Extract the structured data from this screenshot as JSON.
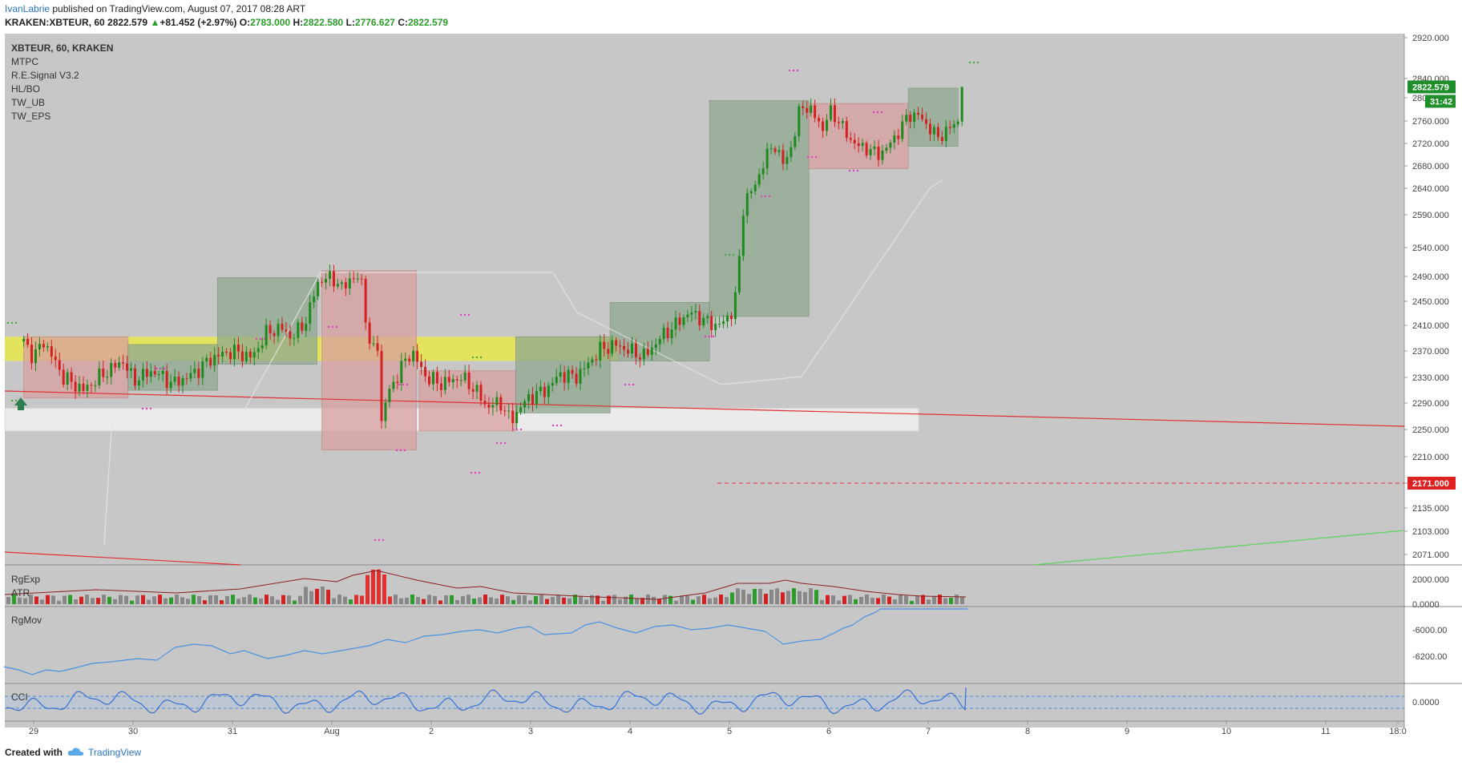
{
  "header": {
    "user": "IvanLabrie",
    "published": " published on TradingView.com, August 07, 2017 08:28 ART",
    "symbol": "KRAKEN:XBTEUR, 60",
    "last": "2822.579",
    "change": "+81.452 (+2.97%)",
    "o_label": "O:",
    "o": "2783.000",
    "h_label": "H:",
    "h": "2822.580",
    "l_label": "L:",
    "l": "2776.627",
    "c_label": "C:",
    "c": "2822.579"
  },
  "legend": {
    "symbol": "XBTEUR, 60, KRAKEN",
    "studies": [
      "MTPC",
      "R.E.Signal V3.2",
      "HL/BO",
      "TW_UB",
      "TW_EPS"
    ]
  },
  "price_badge": {
    "price": "2822.579",
    "countdown": "31:42"
  },
  "level_badge": "2171.000",
  "panes": {
    "volume": {
      "labels": [
        "RgExp",
        "ATR"
      ]
    },
    "rgmov": {
      "label": "RgMov"
    },
    "cci": {
      "label": "CCI"
    }
  },
  "footer": {
    "created": "Created with",
    "brand": "TradingView"
  },
  "colors": {
    "up": "#1e8a1e",
    "down": "#d42020",
    "yellow_zone": "#e8e84a",
    "green_box": "#8fa88f",
    "red_box": "#d9a0a0",
    "line": "#4a90e2"
  },
  "chart_data": {
    "type": "candlestick",
    "symbol": "XBTEUR",
    "interval": "60",
    "exchange": "KRAKEN",
    "y_ticks": [
      "2920.000",
      "2840.000",
      "2800.000",
      "2760.000",
      "2720.000",
      "2680.000",
      "2640.000",
      "2590.000",
      "2540.000",
      "2490.000",
      "2450.000",
      "2410.000",
      "2370.000",
      "2330.000",
      "2290.000",
      "2250.000",
      "2210.000",
      "2171.000",
      "2135.000",
      "2103.000",
      "2071.000"
    ],
    "x_ticks": [
      "29",
      "30",
      "31",
      "Aug",
      "2",
      "3",
      "4",
      "5",
      "6",
      "7",
      "8",
      "9",
      "10",
      "11",
      "18:0"
    ],
    "volume_ticks": [
      "2000.000",
      "0.0000"
    ],
    "rgmov_ticks": [
      "-6000.00",
      "-6200.00"
    ],
    "cci_ticks": [
      "0.0000"
    ],
    "ylim": [
      2050,
      2930
    ],
    "last_price": 2822.579,
    "level_line": 2171.0,
    "zones": [
      {
        "type": "yellow",
        "from": 2355,
        "to": 2392
      },
      {
        "type": "white",
        "from": 2248,
        "to": 2282
      }
    ],
    "boxes": [
      {
        "color": "red",
        "day_from": 28.9,
        "day_to": 29.95,
        "low": 2298,
        "high": 2392
      },
      {
        "color": "green",
        "day_from": 29.95,
        "day_to": 30.85,
        "low": 2310,
        "high": 2380
      },
      {
        "color": "green",
        "day_from": 30.85,
        "day_to": 31.85,
        "low": 2350,
        "high": 2488
      },
      {
        "color": "red",
        "day_from": 31.9,
        "day_to": 32.85,
        "low": 2220,
        "high": 2500
      },
      {
        "color": "red",
        "day_from": 32.88,
        "day_to": 33.85,
        "low": 2248,
        "high": 2340
      },
      {
        "color": "green",
        "day_from": 33.85,
        "day_to": 34.8,
        "low": 2275,
        "high": 2392
      },
      {
        "color": "green",
        "day_from": 34.8,
        "day_to": 35.8,
        "low": 2355,
        "high": 2448
      },
      {
        "color": "green",
        "day_from": 35.8,
        "day_to": 36.8,
        "low": 2425,
        "high": 2795
      },
      {
        "color": "red",
        "day_from": 36.8,
        "day_to": 37.8,
        "low": 2675,
        "high": 2790
      },
      {
        "color": "green",
        "day_from": 37.8,
        "day_to": 38.3,
        "low": 2715,
        "high": 2820
      }
    ],
    "price_path": [
      [
        28.9,
        2385
      ],
      [
        29.0,
        2360
      ],
      [
        29.1,
        2385
      ],
      [
        29.3,
        2330
      ],
      [
        29.5,
        2310
      ],
      [
        29.7,
        2335
      ],
      [
        29.9,
        2355
      ],
      [
        30.0,
        2325
      ],
      [
        30.2,
        2340
      ],
      [
        30.4,
        2320
      ],
      [
        30.6,
        2335
      ],
      [
        30.8,
        2360
      ],
      [
        31.0,
        2370
      ],
      [
        31.2,
        2360
      ],
      [
        31.35,
        2400
      ],
      [
        31.5,
        2405
      ],
      [
        31.6,
        2390
      ],
      [
        31.75,
        2420
      ],
      [
        31.85,
        2480
      ],
      [
        32.0,
        2490
      ],
      [
        32.1,
        2470
      ],
      [
        32.2,
        2490
      ],
      [
        32.3,
        2480
      ],
      [
        32.4,
        2350
      ],
      [
        32.45,
        2410
      ],
      [
        32.5,
        2260
      ],
      [
        32.55,
        2300
      ],
      [
        32.7,
        2345
      ],
      [
        32.8,
        2370
      ],
      [
        32.95,
        2330
      ],
      [
        33.1,
        2320
      ],
      [
        33.3,
        2330
      ],
      [
        33.45,
        2310
      ],
      [
        33.55,
        2285
      ],
      [
        33.7,
        2290
      ],
      [
        33.8,
        2262
      ],
      [
        33.9,
        2285
      ],
      [
        34.0,
        2300
      ],
      [
        34.15,
        2310
      ],
      [
        34.3,
        2335
      ],
      [
        34.45,
        2330
      ],
      [
        34.55,
        2345
      ],
      [
        34.7,
        2372
      ],
      [
        34.85,
        2380
      ],
      [
        35.0,
        2370
      ],
      [
        35.15,
        2362
      ],
      [
        35.3,
        2390
      ],
      [
        35.45,
        2410
      ],
      [
        35.6,
        2432
      ],
      [
        35.75,
        2418
      ],
      [
        35.85,
        2410
      ],
      [
        35.95,
        2415
      ],
      [
        36.05,
        2440
      ],
      [
        36.1,
        2520
      ],
      [
        36.15,
        2620
      ],
      [
        36.25,
        2640
      ],
      [
        36.35,
        2690
      ],
      [
        36.45,
        2720
      ],
      [
        36.55,
        2680
      ],
      [
        36.65,
        2730
      ],
      [
        36.72,
        2790
      ],
      [
        36.8,
        2780
      ],
      [
        36.9,
        2760
      ],
      [
        36.95,
        2740
      ],
      [
        37.0,
        2780
      ],
      [
        37.1,
        2760
      ],
      [
        37.2,
        2730
      ],
      [
        37.3,
        2715
      ],
      [
        37.4,
        2710
      ],
      [
        37.5,
        2700
      ],
      [
        37.6,
        2715
      ],
      [
        37.7,
        2740
      ],
      [
        37.8,
        2770
      ],
      [
        37.9,
        2770
      ],
      [
        38.0,
        2750
      ],
      [
        38.1,
        2730
      ],
      [
        38.2,
        2745
      ],
      [
        38.3,
        2760
      ],
      [
        38.35,
        2822.579
      ]
    ],
    "series": [
      {
        "name": "RgExp"
      },
      {
        "name": "ATR"
      },
      {
        "name": "RgMov"
      },
      {
        "name": "CCI"
      }
    ]
  }
}
